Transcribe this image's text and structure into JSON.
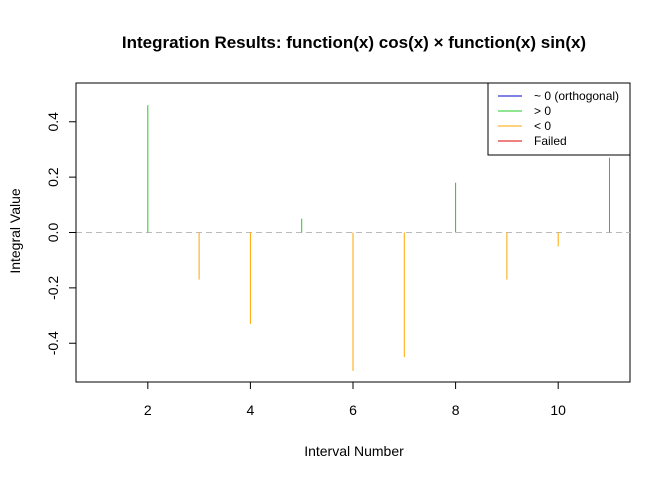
{
  "chart_data": {
    "type": "bar",
    "title": "Integration Results: function(x) cos(x) × function(x) sin(x)",
    "xlabel": "Interval Number",
    "ylabel": "Integral Value",
    "xlim": [
      0.6,
      11.4
    ],
    "ylim": [
      -0.54,
      0.54
    ],
    "xticks": [
      2,
      4,
      6,
      8,
      10
    ],
    "yticks": [
      -0.4,
      -0.2,
      0.0,
      0.2,
      0.4
    ],
    "ytick_labels": [
      "-0.4",
      "-0.2",
      "0.0",
      "0.2",
      "0.4"
    ],
    "zero_line": {
      "style": "dashed",
      "color": "#bbbbbb"
    },
    "colors": {
      "orthogonal": "#0000cc",
      "positive": "#22cc22",
      "negative": "#ffa500",
      "failed": "#dd0000"
    },
    "x": [
      1,
      2,
      3,
      4,
      5,
      6,
      7,
      8,
      9,
      10,
      11
    ],
    "values": [
      0.0,
      0.46,
      -0.17,
      -0.33,
      0.05,
      -0.5,
      -0.45,
      0.18,
      -0.17,
      -0.05,
      0.27
    ],
    "categories": [
      "orthogonal",
      "positive",
      "negative",
      "negative",
      "positive",
      "negative",
      "negative",
      "positive",
      "negative",
      "negative",
      "positive"
    ],
    "legend": {
      "position": "top-right",
      "entries": [
        {
          "label": "~ 0 (orthogonal)",
          "color": "#0000cc"
        },
        {
          "label": "> 0",
          "color": "#22cc22"
        },
        {
          "label": "< 0",
          "color": "#ffa500"
        },
        {
          "label": "Failed",
          "color": "#dd0000"
        }
      ]
    },
    "grid": false
  }
}
